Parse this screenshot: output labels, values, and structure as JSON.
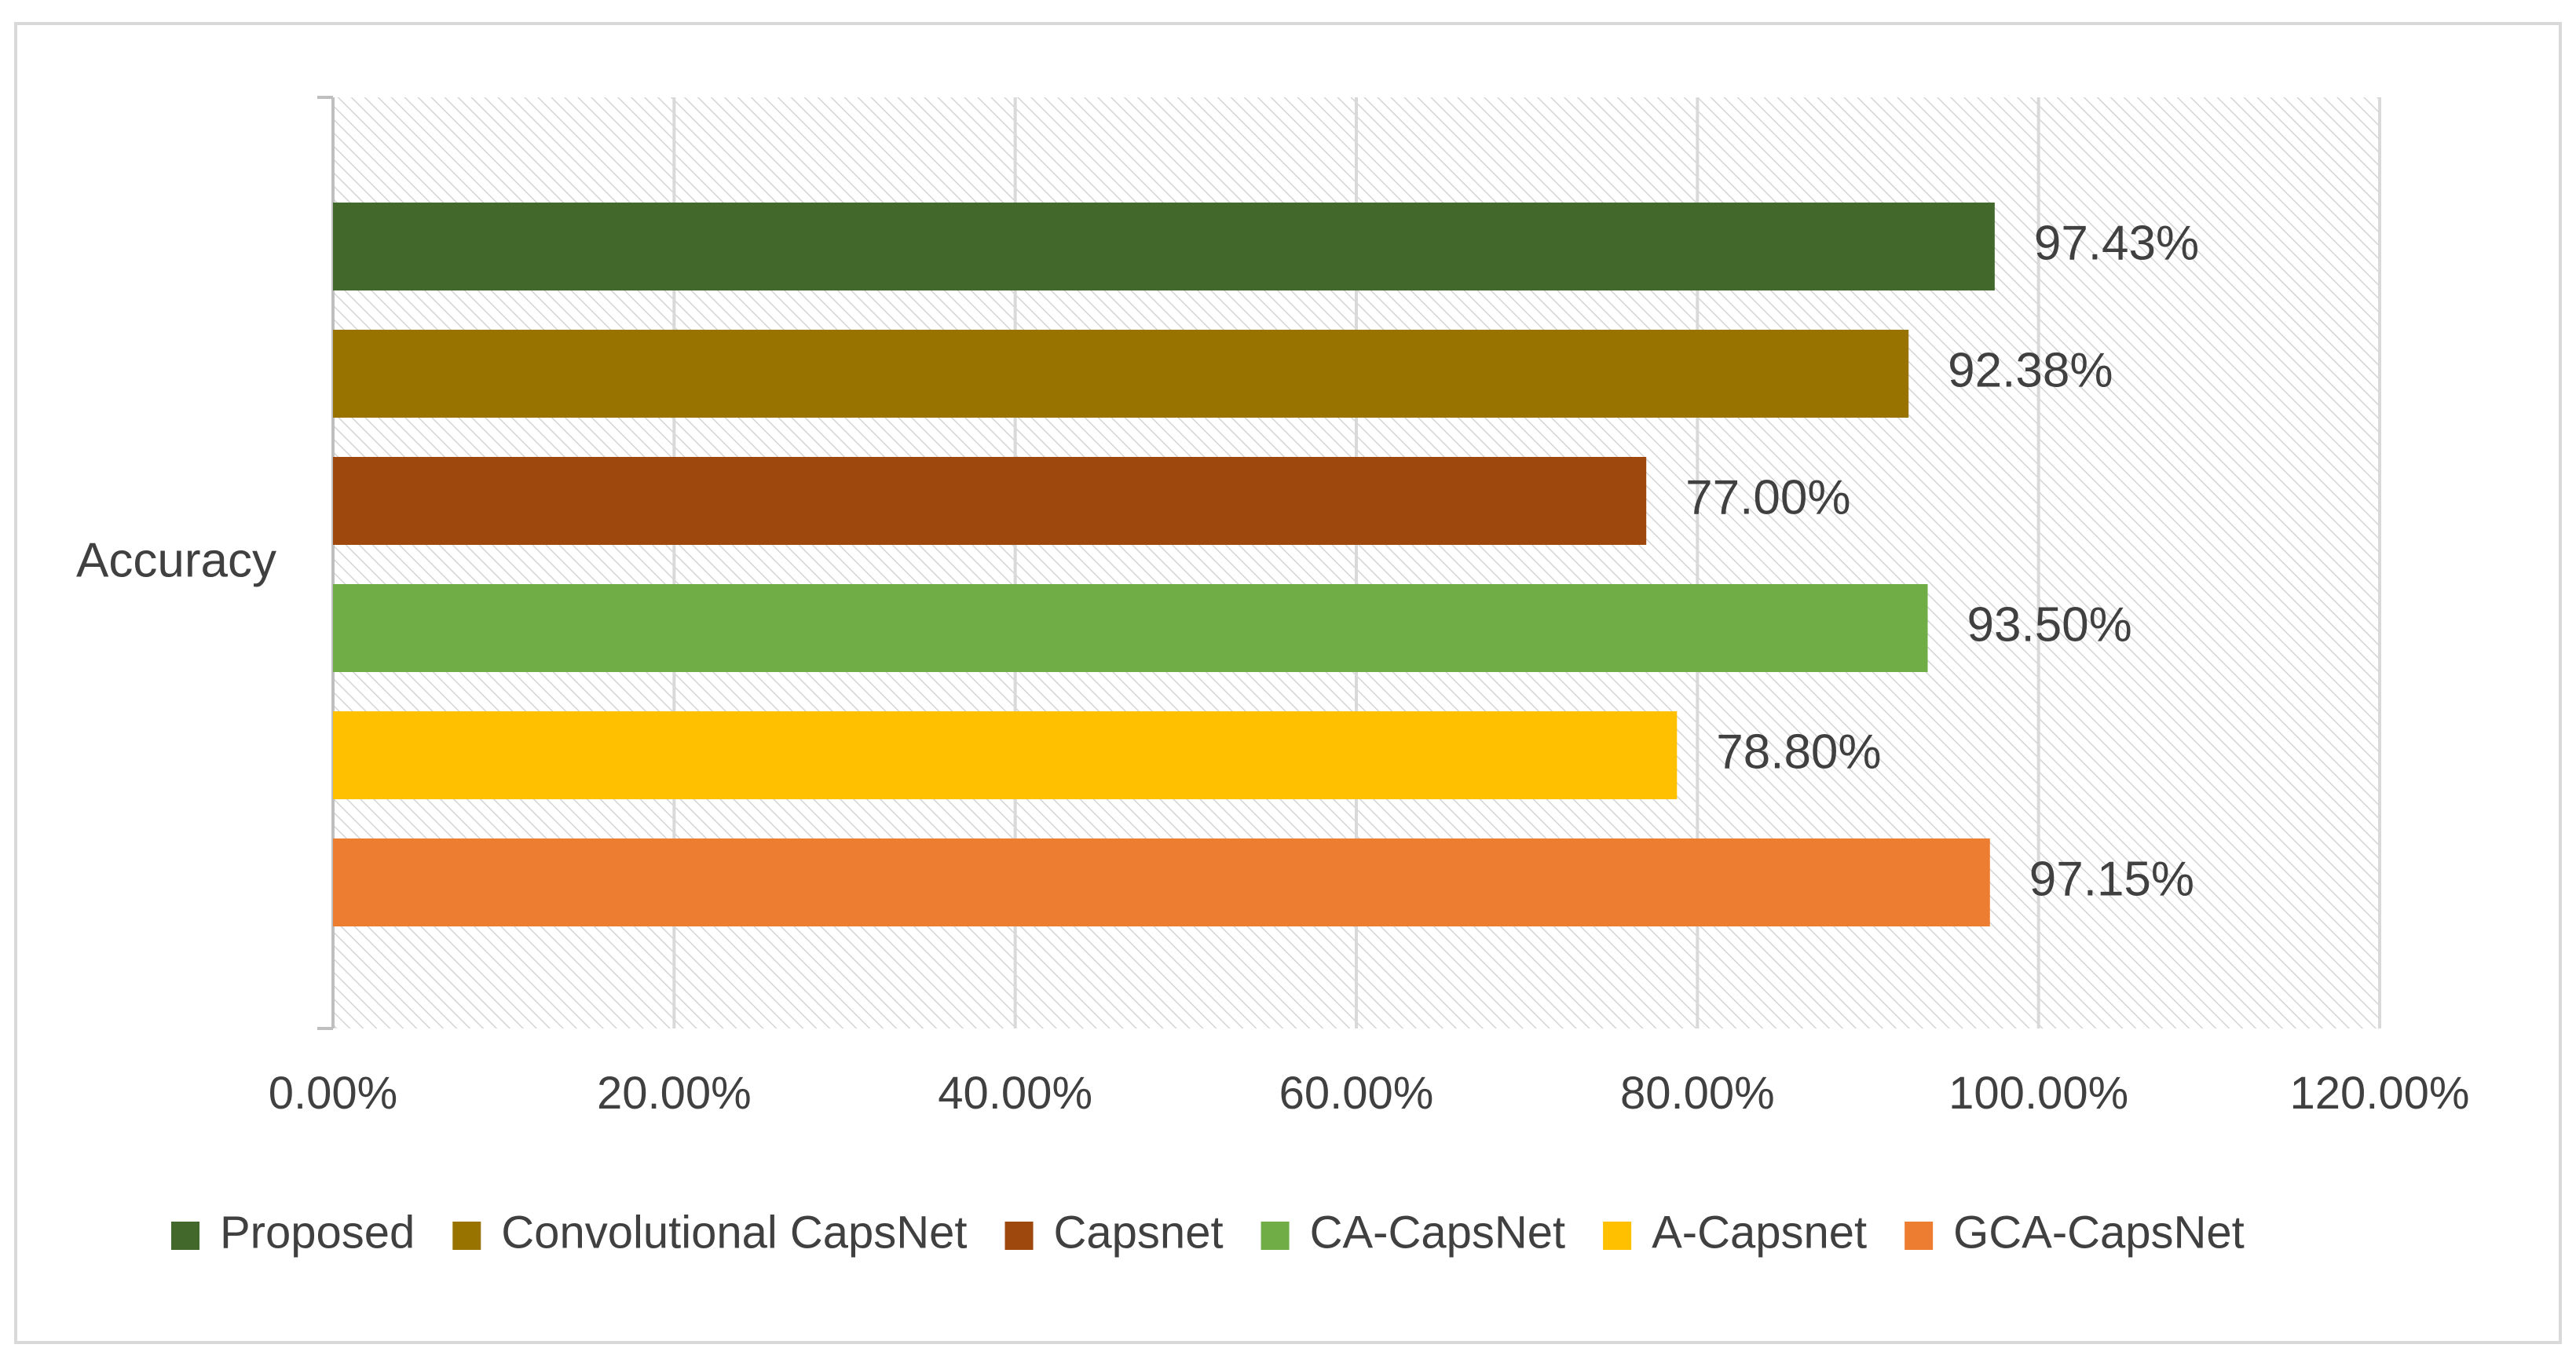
{
  "chart_data": {
    "type": "bar",
    "orientation": "horizontal",
    "category_label": "Accuracy",
    "series": [
      {
        "name": "Proposed",
        "value": 97.43,
        "label": "97.43%",
        "color": "#43682B"
      },
      {
        "name": "Convolutional CapsNet",
        "value": 92.38,
        "label": "92.38%",
        "color": "#997300"
      },
      {
        "name": "Capsnet",
        "value": 77.0,
        "label": "77.00%",
        "color": "#9E480E"
      },
      {
        "name": "CA-CapsNet",
        "value": 93.5,
        "label": "93.50%",
        "color": "#70AD47"
      },
      {
        "name": "A-Capsnet",
        "value": 78.8,
        "label": "78.80%",
        "color": "#FFC000"
      },
      {
        "name": "GCA-CapsNet",
        "value": 97.15,
        "label": "97.15%",
        "color": "#ED7D31"
      }
    ],
    "x_ticks": [
      {
        "value": 0,
        "label": "0.00%"
      },
      {
        "value": 20,
        "label": "20.00%"
      },
      {
        "value": 40,
        "label": "40.00%"
      },
      {
        "value": 60,
        "label": "60.00%"
      },
      {
        "value": 80,
        "label": "80.00%"
      },
      {
        "value": 100,
        "label": "100.00%"
      },
      {
        "value": 120,
        "label": "120.00%"
      }
    ],
    "xlim": [
      0,
      120
    ],
    "grid": true,
    "plot_background": "hatched",
    "legend_position": "bottom"
  }
}
